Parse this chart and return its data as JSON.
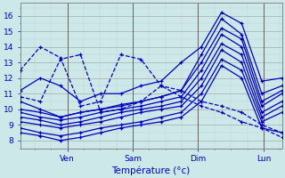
{
  "xlabel": "Température (°c)",
  "bg_color": "#cce8e8",
  "line_color": "#0000bb",
  "grid_major_color": "#aaaaaa",
  "grid_minor_color": "#cccccc",
  "tick_label_color": "#0000bb",
  "axis_label_color": "#0000bb",
  "ylim": [
    7.5,
    16.8
  ],
  "xlim": [
    0,
    1.0
  ],
  "xtick_positions": [
    0.18,
    0.43,
    0.68,
    0.93
  ],
  "xtick_labels": [
    "Ven",
    "Sam",
    "Dim",
    "Lun"
  ],
  "ytick_positions": [
    8,
    9,
    10,
    11,
    12,
    13,
    14,
    15,
    16
  ],
  "vline_positions": [
    0.18,
    0.43,
    0.68,
    0.93
  ],
  "series": [
    [
      12.5,
      14.0,
      13.3,
      10.2,
      10.5,
      13.5,
      13.2,
      11.5,
      11.2,
      10.5,
      10.2,
      9.8,
      9.0,
      8.5
    ],
    [
      11.2,
      12.0,
      11.5,
      10.5,
      11.0,
      11.0,
      11.5,
      11.8,
      13.0,
      14.0,
      16.2,
      15.5,
      11.8,
      12.0
    ],
    [
      10.8,
      10.5,
      13.2,
      13.5,
      9.8,
      10.0,
      10.5,
      11.5,
      10.8,
      10.2,
      9.8,
      9.2,
      8.8,
      8.2
    ],
    [
      10.5,
      10.0,
      9.5,
      9.8,
      10.0,
      10.3,
      10.5,
      10.8,
      11.2,
      13.5,
      15.8,
      14.8,
      11.0,
      11.5
    ],
    [
      10.0,
      9.8,
      9.5,
      9.8,
      10.0,
      10.2,
      10.5,
      10.8,
      11.2,
      13.0,
      15.2,
      14.5,
      10.5,
      11.2
    ],
    [
      9.8,
      9.5,
      9.3,
      9.5,
      9.8,
      10.0,
      10.2,
      10.5,
      10.8,
      12.5,
      14.8,
      14.0,
      10.2,
      11.0
    ],
    [
      9.5,
      9.3,
      9.0,
      9.2,
      9.5,
      9.8,
      10.0,
      10.2,
      10.5,
      12.0,
      14.2,
      13.5,
      9.8,
      10.5
    ],
    [
      9.2,
      9.0,
      8.8,
      9.0,
      9.2,
      9.5,
      9.8,
      10.0,
      10.2,
      11.5,
      13.8,
      13.0,
      9.5,
      10.2
    ],
    [
      8.8,
      8.5,
      8.3,
      8.5,
      8.8,
      9.0,
      9.2,
      9.5,
      9.8,
      11.0,
      13.2,
      12.5,
      9.2,
      9.8
    ],
    [
      8.5,
      8.3,
      8.0,
      8.2,
      8.5,
      8.8,
      9.0,
      9.2,
      9.5,
      10.5,
      12.8,
      12.0,
      8.8,
      8.5
    ]
  ],
  "series_styles": [
    {
      "ls": "--",
      "lw": 0.9
    },
    {
      "ls": "-",
      "lw": 0.9
    },
    {
      "ls": "--",
      "lw": 0.9
    },
    {
      "ls": "-",
      "lw": 0.9
    },
    {
      "ls": "-",
      "lw": 0.9
    },
    {
      "ls": "-",
      "lw": 0.9
    },
    {
      "ls": "-",
      "lw": 0.9
    },
    {
      "ls": "-",
      "lw": 0.9
    },
    {
      "ls": "-",
      "lw": 0.9
    },
    {
      "ls": "-",
      "lw": 0.9
    }
  ]
}
